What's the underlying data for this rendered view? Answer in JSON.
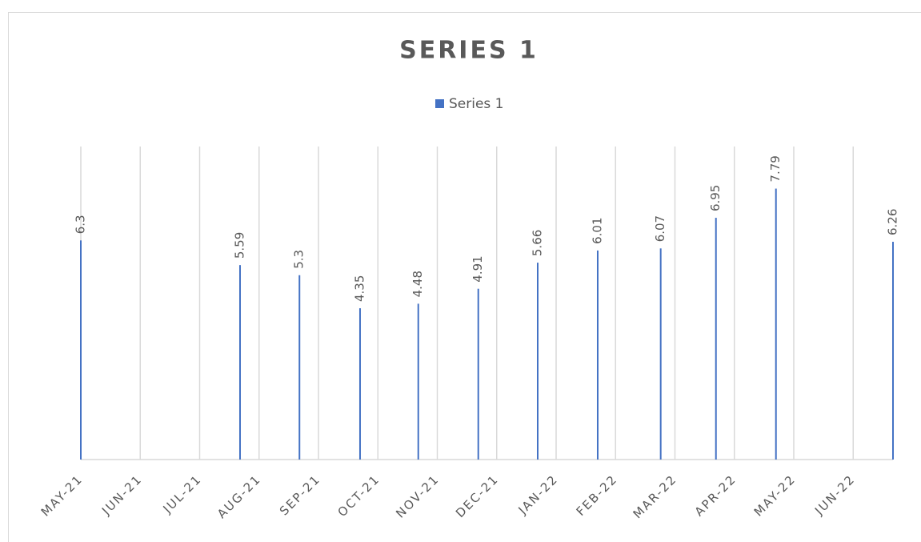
{
  "chart_data": {
    "type": "bar",
    "title": "SERIES 1",
    "x": [
      0,
      2.68,
      3.68,
      4.7,
      5.68,
      6.69,
      7.69,
      8.7,
      9.76,
      10.69,
      11.7,
      13.67
    ],
    "series": [
      {
        "name": "Series 1",
        "color": "#4472c4",
        "values": [
          6.3,
          5.59,
          5.3,
          4.35,
          4.48,
          4.91,
          5.66,
          6.01,
          6.07,
          6.95,
          7.79,
          6.26
        ]
      }
    ],
    "xlim": [
      0,
      13.67
    ],
    "xticks": [
      {
        "value": 0,
        "label": "MAY-21"
      },
      {
        "value": 1,
        "label": "JUN-21"
      },
      {
        "value": 2,
        "label": "JUL-21"
      },
      {
        "value": 3,
        "label": "AUG-21"
      },
      {
        "value": 4,
        "label": "SEP-21"
      },
      {
        "value": 5,
        "label": "OCT-21"
      },
      {
        "value": 6,
        "label": "NOV-21"
      },
      {
        "value": 7,
        "label": "DEC-21"
      },
      {
        "value": 8,
        "label": "JAN-22"
      },
      {
        "value": 9,
        "label": "FEB-22"
      },
      {
        "value": 10,
        "label": "MAR-22"
      },
      {
        "value": 11,
        "label": "APR-22"
      },
      {
        "value": 12,
        "label": "MAY-22"
      },
      {
        "value": 13,
        "label": "JUN-22"
      }
    ],
    "ylim": [
      0,
      9
    ],
    "grid": true,
    "legend": "top"
  }
}
